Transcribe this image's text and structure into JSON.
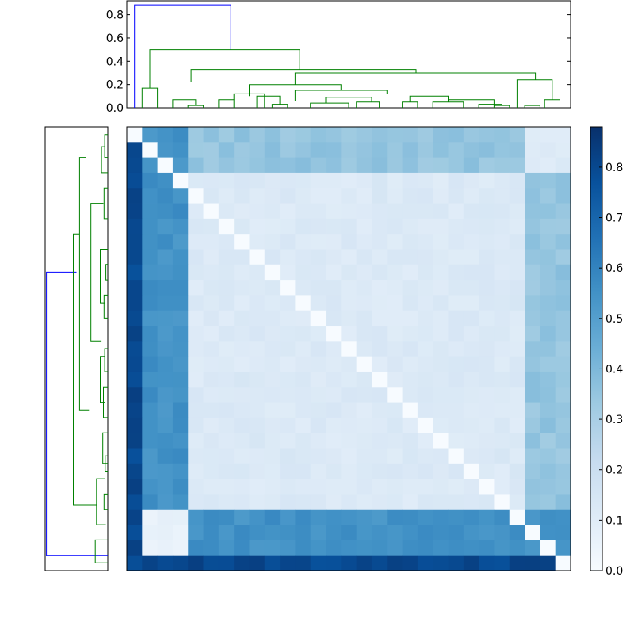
{
  "chart_data": [
    {
      "type": "dendrogram",
      "panel": "top",
      "orientation": "top",
      "ylim": [
        0,
        0.92
      ],
      "ytick_labels": [
        "0.0",
        "0.2",
        "0.4",
        "0.6",
        "0.8"
      ],
      "ytick_values": [
        0,
        0.2,
        0.4,
        0.6,
        0.8
      ],
      "link_colors": {
        "above_threshold": "#0000ff",
        "clusters": "#008000"
      },
      "leaf_count": 29,
      "links": [
        {
          "x": [
            0.5,
            0.5,
            6.8,
            6.8
          ],
          "y": [
            0,
            0.885,
            0.885,
            0.5
          ],
          "color": "#0000ff"
        },
        {
          "x": [
            1.5,
            1.5,
            11.3,
            11.3
          ],
          "y": [
            0.17,
            0.5,
            0.5,
            0.33
          ],
          "color": "#008000"
        },
        {
          "x": [
            4.2,
            4.2,
            18.9,
            18.9
          ],
          "y": [
            0.22,
            0.33,
            0.33,
            0.3
          ],
          "color": "#008000"
        },
        {
          "x": [
            11.0,
            11.0,
            26.7,
            26.7
          ],
          "y": [
            0.2,
            0.3,
            0.3,
            0.24
          ],
          "color": "#008000"
        },
        {
          "x": [
            8.0,
            8.0,
            14.0,
            14.0
          ],
          "y": [
            0.1,
            0.2,
            0.2,
            0.15
          ],
          "color": "#008000"
        },
        {
          "x": [
            11.0,
            11.0,
            17.0,
            17.0
          ],
          "y": [
            0.06,
            0.15,
            0.15,
            0.12
          ],
          "color": "#008000"
        },
        {
          "x": [
            25.5,
            25.5,
            27.8,
            27.8
          ],
          "y": [
            0.0,
            0.24,
            0.24,
            0.07
          ],
          "color": "#008000"
        },
        {
          "x": [
            27.3,
            27.3,
            28.3,
            28.3
          ],
          "y": [
            0.0,
            0.07,
            0.07,
            0.0
          ],
          "color": "#008000"
        },
        {
          "x": [
            1.0,
            1.0,
            2.0,
            2.0
          ],
          "y": [
            0.0,
            0.17,
            0.17,
            0.0
          ],
          "color": "#008000"
        },
        {
          "x": [
            3.0,
            3.0,
            4.5,
            4.5
          ],
          "y": [
            0.0,
            0.07,
            0.07,
            0.02
          ],
          "color": "#008000"
        },
        {
          "x": [
            4.0,
            4.0,
            5.0,
            5.0
          ],
          "y": [
            0.0,
            0.02,
            0.02,
            0.0
          ],
          "color": "#008000"
        },
        {
          "x": [
            6.0,
            6.0,
            7.0,
            7.0
          ],
          "y": [
            0.0,
            0.07,
            0.07,
            0.0
          ],
          "color": "#008000"
        },
        {
          "x": [
            7.0,
            7.0,
            9.0,
            9.0
          ],
          "y": [
            0.07,
            0.12,
            0.12,
            0.0
          ],
          "color": "#008000"
        },
        {
          "x": [
            8.5,
            8.5,
            10.0,
            10.0
          ],
          "y": [
            0.0,
            0.1,
            0.1,
            0.03
          ],
          "color": "#008000"
        },
        {
          "x": [
            9.5,
            9.5,
            10.5,
            10.5
          ],
          "y": [
            0.0,
            0.03,
            0.03,
            0.0
          ],
          "color": "#008000"
        },
        {
          "x": [
            12.0,
            12.0,
            14.5,
            14.5
          ],
          "y": [
            0.0,
            0.04,
            0.04,
            0.0
          ],
          "color": "#008000"
        },
        {
          "x": [
            13.0,
            13.0,
            16.0,
            16.0
          ],
          "y": [
            0.04,
            0.09,
            0.09,
            0.05
          ],
          "color": "#008000"
        },
        {
          "x": [
            15.0,
            15.0,
            16.5,
            16.5
          ],
          "y": [
            0.0,
            0.05,
            0.05,
            0.0
          ],
          "color": "#008000"
        },
        {
          "x": [
            18.0,
            18.0,
            19.0,
            19.0
          ],
          "y": [
            0.0,
            0.05,
            0.05,
            0.0
          ],
          "color": "#008000"
        },
        {
          "x": [
            18.5,
            18.5,
            21.0,
            21.0
          ],
          "y": [
            0.05,
            0.1,
            0.1,
            0.05
          ],
          "color": "#008000"
        },
        {
          "x": [
            20.0,
            20.0,
            22.0,
            22.0
          ],
          "y": [
            0.0,
            0.05,
            0.05,
            0.0
          ],
          "color": "#008000"
        },
        {
          "x": [
            21.0,
            21.0,
            24.0,
            24.0
          ],
          "y": [
            0.05,
            0.07,
            0.07,
            0.03
          ],
          "color": "#008000"
        },
        {
          "x": [
            23.0,
            23.0,
            24.5,
            24.5
          ],
          "y": [
            0.0,
            0.03,
            0.03,
            0.02
          ],
          "color": "#008000"
        },
        {
          "x": [
            24.0,
            24.0,
            25.0,
            25.0
          ],
          "y": [
            0.0,
            0.02,
            0.02,
            0.0
          ],
          "color": "#008000"
        },
        {
          "x": [
            26.0,
            26.0,
            27.0,
            27.0
          ],
          "y": [
            0.0,
            0.02,
            0.02,
            0.0
          ],
          "color": "#008000"
        }
      ]
    },
    {
      "type": "dendrogram",
      "panel": "left",
      "orientation": "left",
      "link_colors": {
        "above_threshold": "#0000ff",
        "clusters": "#008000"
      },
      "leaf_count": 29
    },
    {
      "type": "heatmap",
      "panel": "main",
      "rows": 29,
      "cols": 29,
      "colormap": "Blues",
      "vmin": 0,
      "vmax": 0.88,
      "pattern": {
        "outer_block": 0.8,
        "left_block": 0.55,
        "right_block": 0.35,
        "inner_block": 0.1,
        "diagonal": 0.0
      }
    },
    {
      "type": "colorbar",
      "panel": "right",
      "colormap": "Blues",
      "vmin": 0,
      "vmax": 0.88,
      "tick_labels": [
        "0.0",
        "0.1",
        "0.2",
        "0.3",
        "0.4",
        "0.5",
        "0.6",
        "0.7",
        "0.8"
      ],
      "tick_values": [
        0,
        0.1,
        0.2,
        0.3,
        0.4,
        0.5,
        0.6,
        0.7,
        0.8
      ]
    }
  ]
}
